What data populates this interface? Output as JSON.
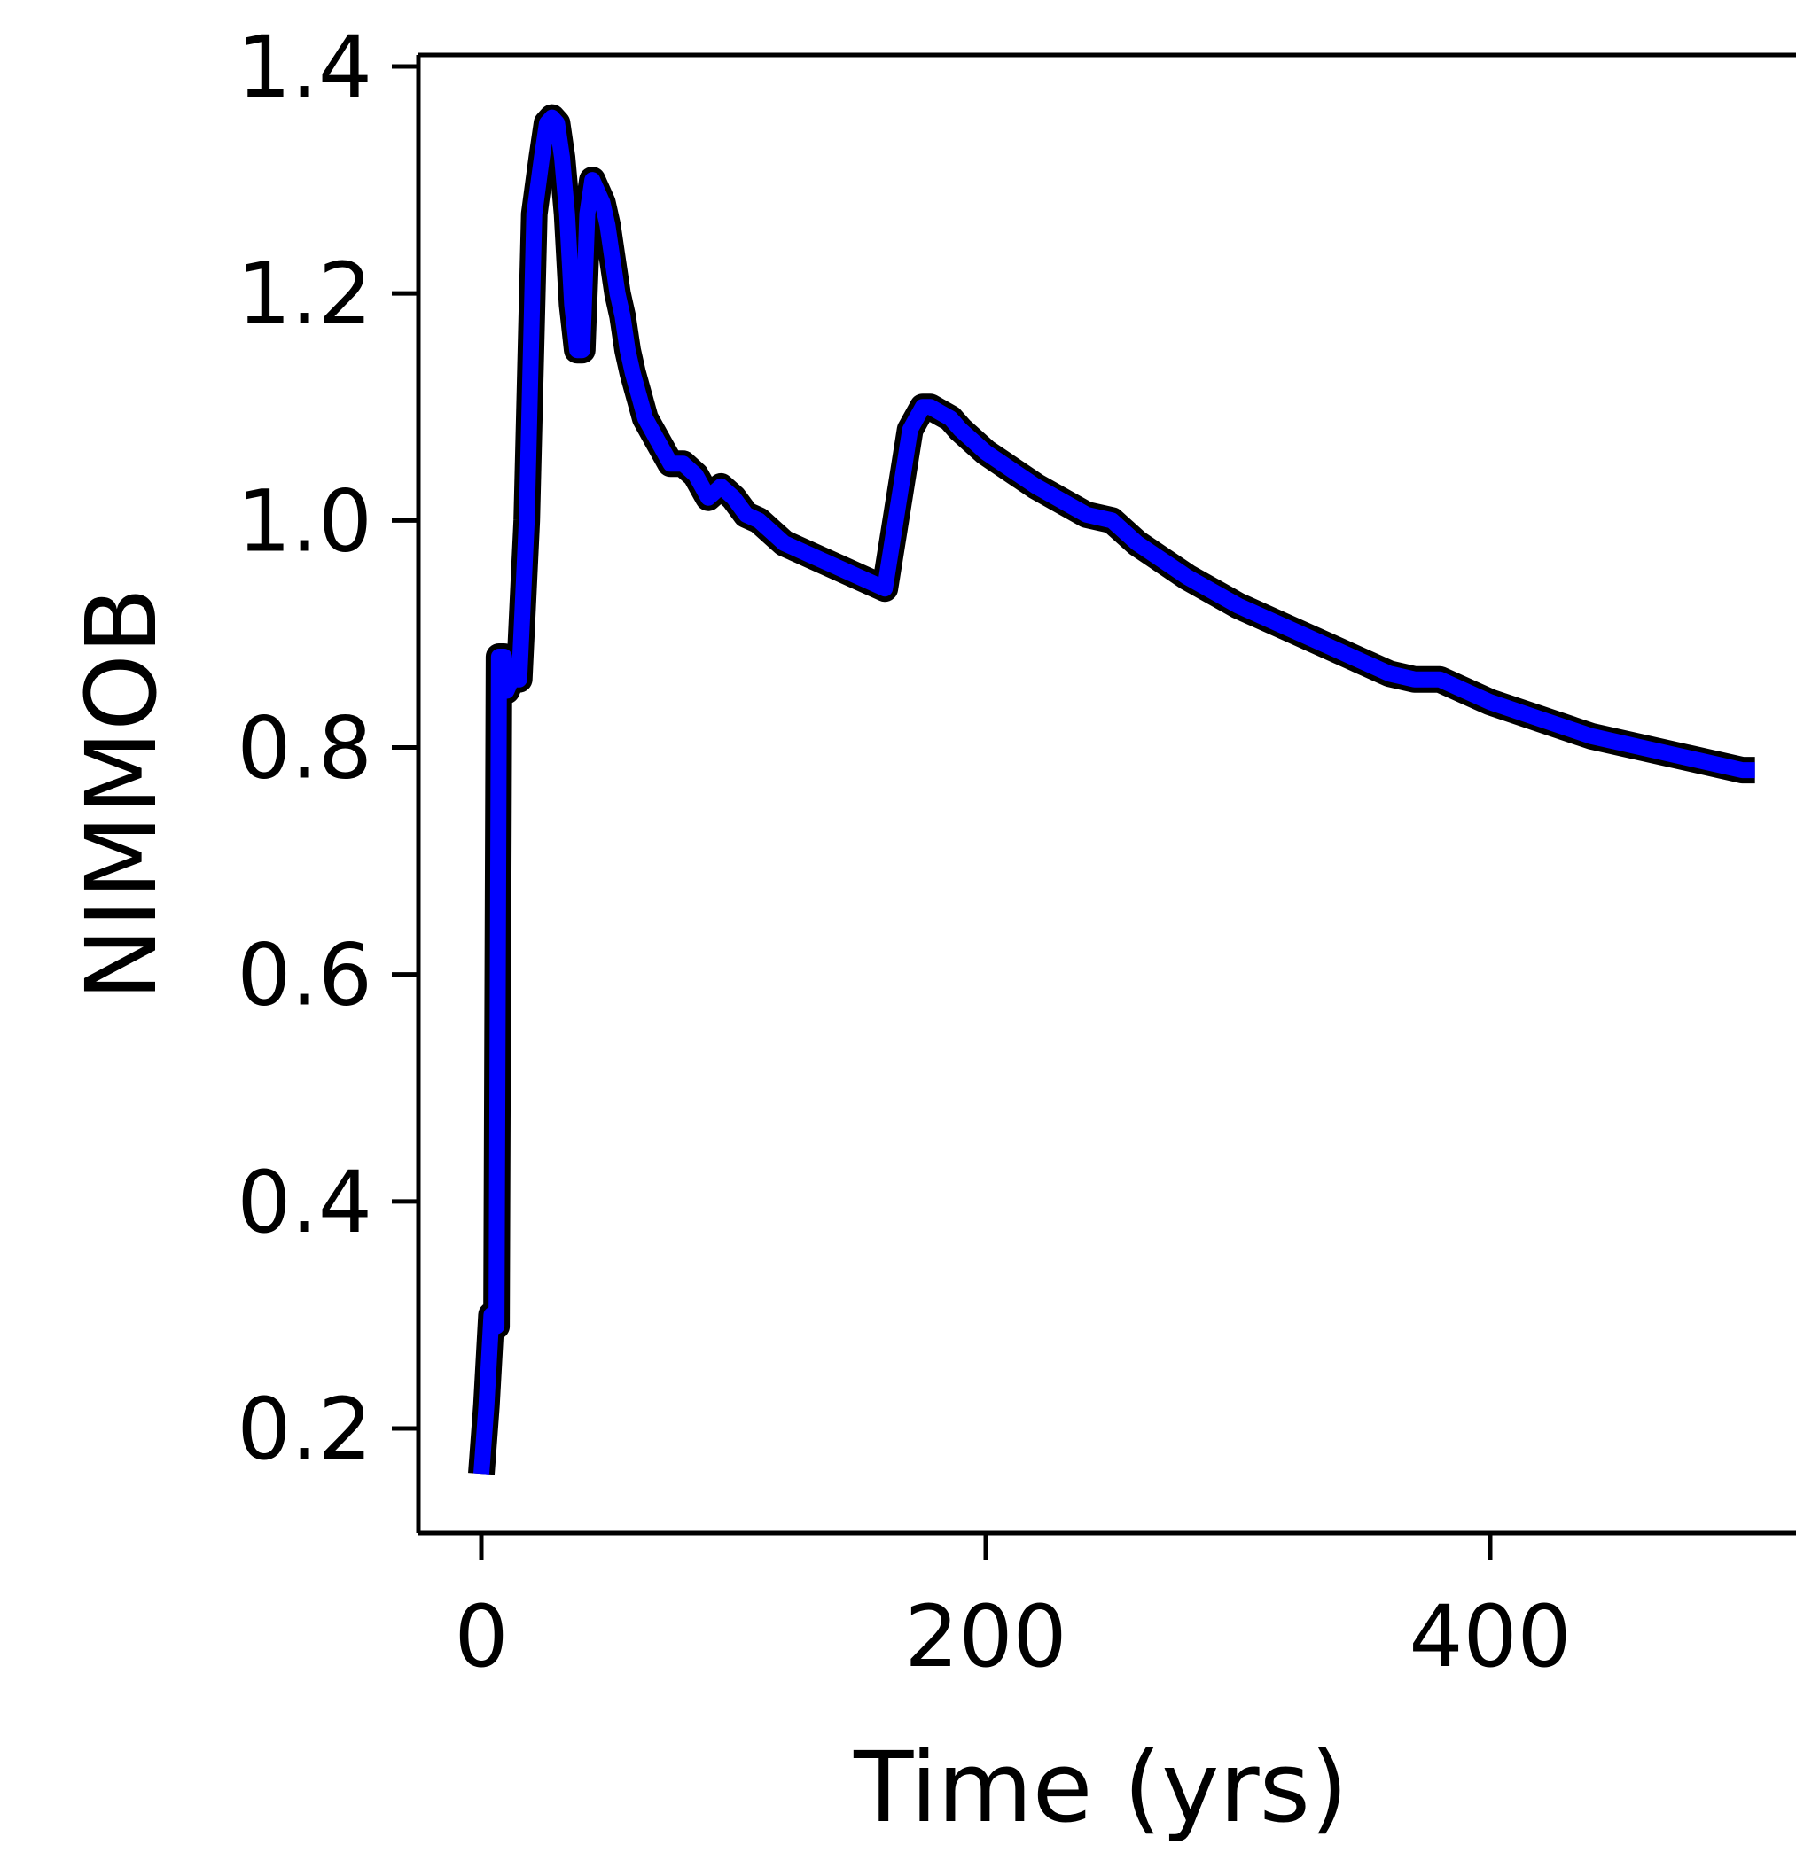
{
  "chart_data": {
    "type": "line",
    "title": "",
    "xlabel": "Time (yrs)",
    "ylabel": "NIMMOB",
    "xlim": [
      -25,
      520
    ],
    "ylim": [
      0.11,
      1.41
    ],
    "xticks": [
      0,
      200,
      400
    ],
    "xtick_labels": [
      "0",
      "200",
      "400"
    ],
    "yticks": [
      0.2,
      0.4,
      0.6,
      0.8,
      1.0,
      1.2,
      1.4
    ],
    "ytick_labels": [
      "0.2",
      "0.4",
      "0.6",
      "0.8",
      "1.0",
      "1.2",
      "1.4"
    ],
    "grid": false,
    "legend": null,
    "colors": {
      "line": "#0000ff",
      "line_edge": "#000000",
      "axes": "#000000",
      "background": "#ffffff"
    },
    "series": [
      {
        "x": [
          0,
          2,
          4,
          6,
          7,
          9,
          10,
          12,
          15,
          18,
          21,
          24,
          26,
          28,
          30,
          32,
          34,
          36,
          38,
          40,
          42,
          44,
          46,
          48,
          50,
          52,
          54,
          56,
          58,
          60,
          65,
          70,
          75,
          80,
          85,
          90,
          95,
          100,
          105,
          110,
          115,
          120,
          130,
          140,
          150,
          160,
          170,
          175,
          178,
          182,
          186,
          190,
          200,
          220,
          240,
          250,
          260,
          280,
          300,
          320,
          340,
          360,
          370,
          375,
          380,
          385,
          400,
          420,
          440,
          460,
          480,
          500,
          505
        ],
        "values": [
          0.16,
          0.22,
          0.3,
          0.29,
          0.88,
          0.88,
          0.85,
          0.86,
          0.86,
          1.0,
          1.27,
          1.32,
          1.35,
          1.355,
          1.35,
          1.32,
          1.27,
          1.19,
          1.15,
          1.15,
          1.27,
          1.3,
          1.29,
          1.28,
          1.26,
          1.23,
          1.2,
          1.18,
          1.15,
          1.13,
          1.09,
          1.07,
          1.05,
          1.05,
          1.04,
          1.02,
          1.03,
          1.02,
          1.005,
          1.0,
          0.99,
          0.98,
          0.97,
          0.96,
          0.95,
          0.94,
          1.08,
          1.1,
          1.1,
          1.095,
          1.09,
          1.08,
          1.06,
          1.03,
          1.005,
          1.0,
          0.98,
          0.95,
          0.925,
          0.905,
          0.885,
          0.865,
          0.86,
          0.86,
          0.86,
          0.855,
          0.84,
          0.825,
          0.81,
          0.8,
          0.79,
          0.78,
          0.78
        ]
      }
    ]
  }
}
